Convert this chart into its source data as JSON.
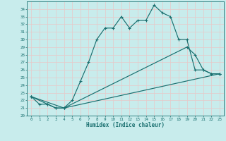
{
  "xlabel": "Humidex (Indice chaleur)",
  "ylabel": "",
  "xlim": [
    -0.5,
    23.5
  ],
  "ylim": [
    20,
    35
  ],
  "yticks": [
    20,
    21,
    22,
    23,
    24,
    25,
    26,
    27,
    28,
    29,
    30,
    31,
    32,
    33,
    34
  ],
  "xticks": [
    0,
    1,
    2,
    3,
    4,
    5,
    6,
    7,
    8,
    9,
    10,
    11,
    12,
    13,
    14,
    15,
    16,
    17,
    18,
    19,
    20,
    21,
    22,
    23
  ],
  "bg_color": "#c8ecec",
  "grid_color": "#aad4d4",
  "line_color": "#1a7070",
  "line1_x": [
    0,
    1,
    2,
    3,
    4,
    5,
    6,
    7,
    8,
    9,
    10,
    11,
    12,
    13,
    14,
    15,
    16,
    17,
    18,
    19,
    20,
    21,
    22,
    23
  ],
  "line1_y": [
    22.5,
    21.5,
    21.5,
    21.0,
    21.0,
    22.0,
    24.5,
    27.0,
    30.0,
    31.5,
    31.5,
    33.0,
    31.5,
    32.5,
    32.5,
    34.5,
    33.5,
    33.0,
    30.0,
    30.0,
    26.0,
    26.0,
    25.5,
    25.5
  ],
  "line2_x": [
    0,
    2,
    3,
    4,
    19,
    20,
    21,
    22,
    23
  ],
  "line2_y": [
    22.5,
    21.5,
    21.0,
    21.0,
    29.0,
    28.0,
    26.0,
    25.5,
    25.5
  ],
  "line3_x": [
    0,
    4,
    23
  ],
  "line3_y": [
    22.5,
    21.0,
    25.5
  ],
  "marker": "+"
}
